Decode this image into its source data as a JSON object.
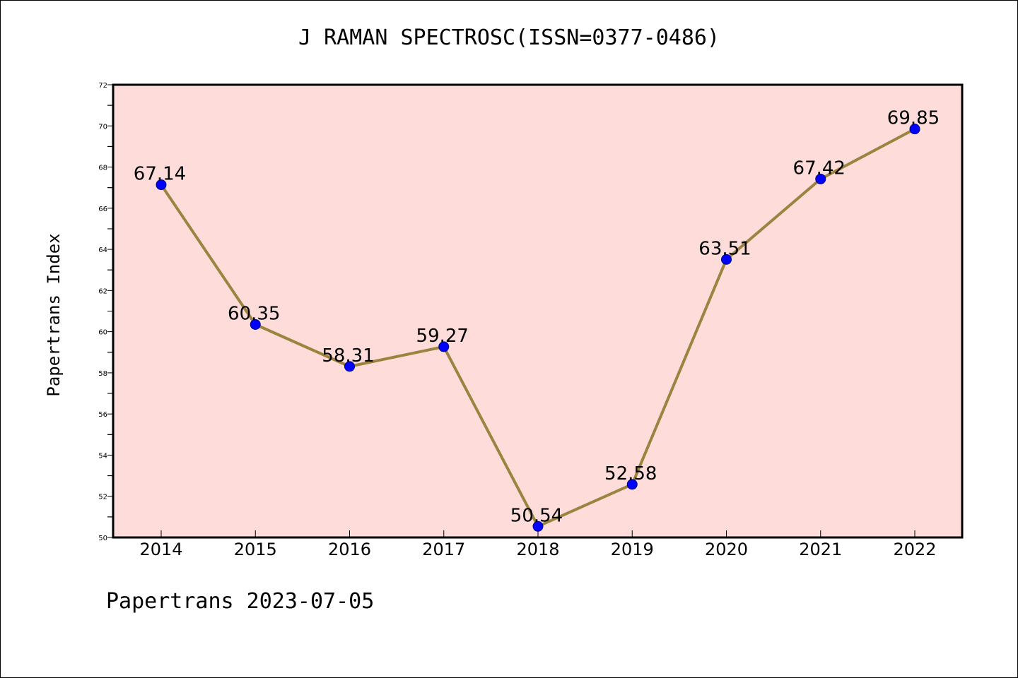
{
  "chart_data": {
    "type": "line",
    "title": "J RAMAN SPECTROSC(ISSN=0377-0486)",
    "xlabel": "",
    "ylabel": "Papertrans Index",
    "categories": [
      "2014",
      "2015",
      "2016",
      "2017",
      "2018",
      "2019",
      "2020",
      "2021",
      "2022"
    ],
    "series": [
      {
        "values": [
          67.14,
          60.35,
          58.31,
          59.27,
          50.54,
          52.58,
          63.51,
          67.42,
          69.85
        ]
      }
    ],
    "data_labels": [
      "67.14",
      "60.35",
      "58.31",
      "59.27",
      "50.54",
      "52.58",
      "63.51",
      "67.42",
      "69.85"
    ],
    "ylim": [
      50,
      72
    ],
    "yticks": [
      "50",
      "52",
      "54",
      "56",
      "58",
      "60",
      "62",
      "64",
      "66",
      "68",
      "70",
      "72"
    ],
    "grid": false,
    "colors": {
      "plot_background": "#fddcda",
      "line": "#9b8340",
      "marker": "#0000ff"
    }
  },
  "footer": {
    "text": "Papertrans 2023-07-05"
  }
}
